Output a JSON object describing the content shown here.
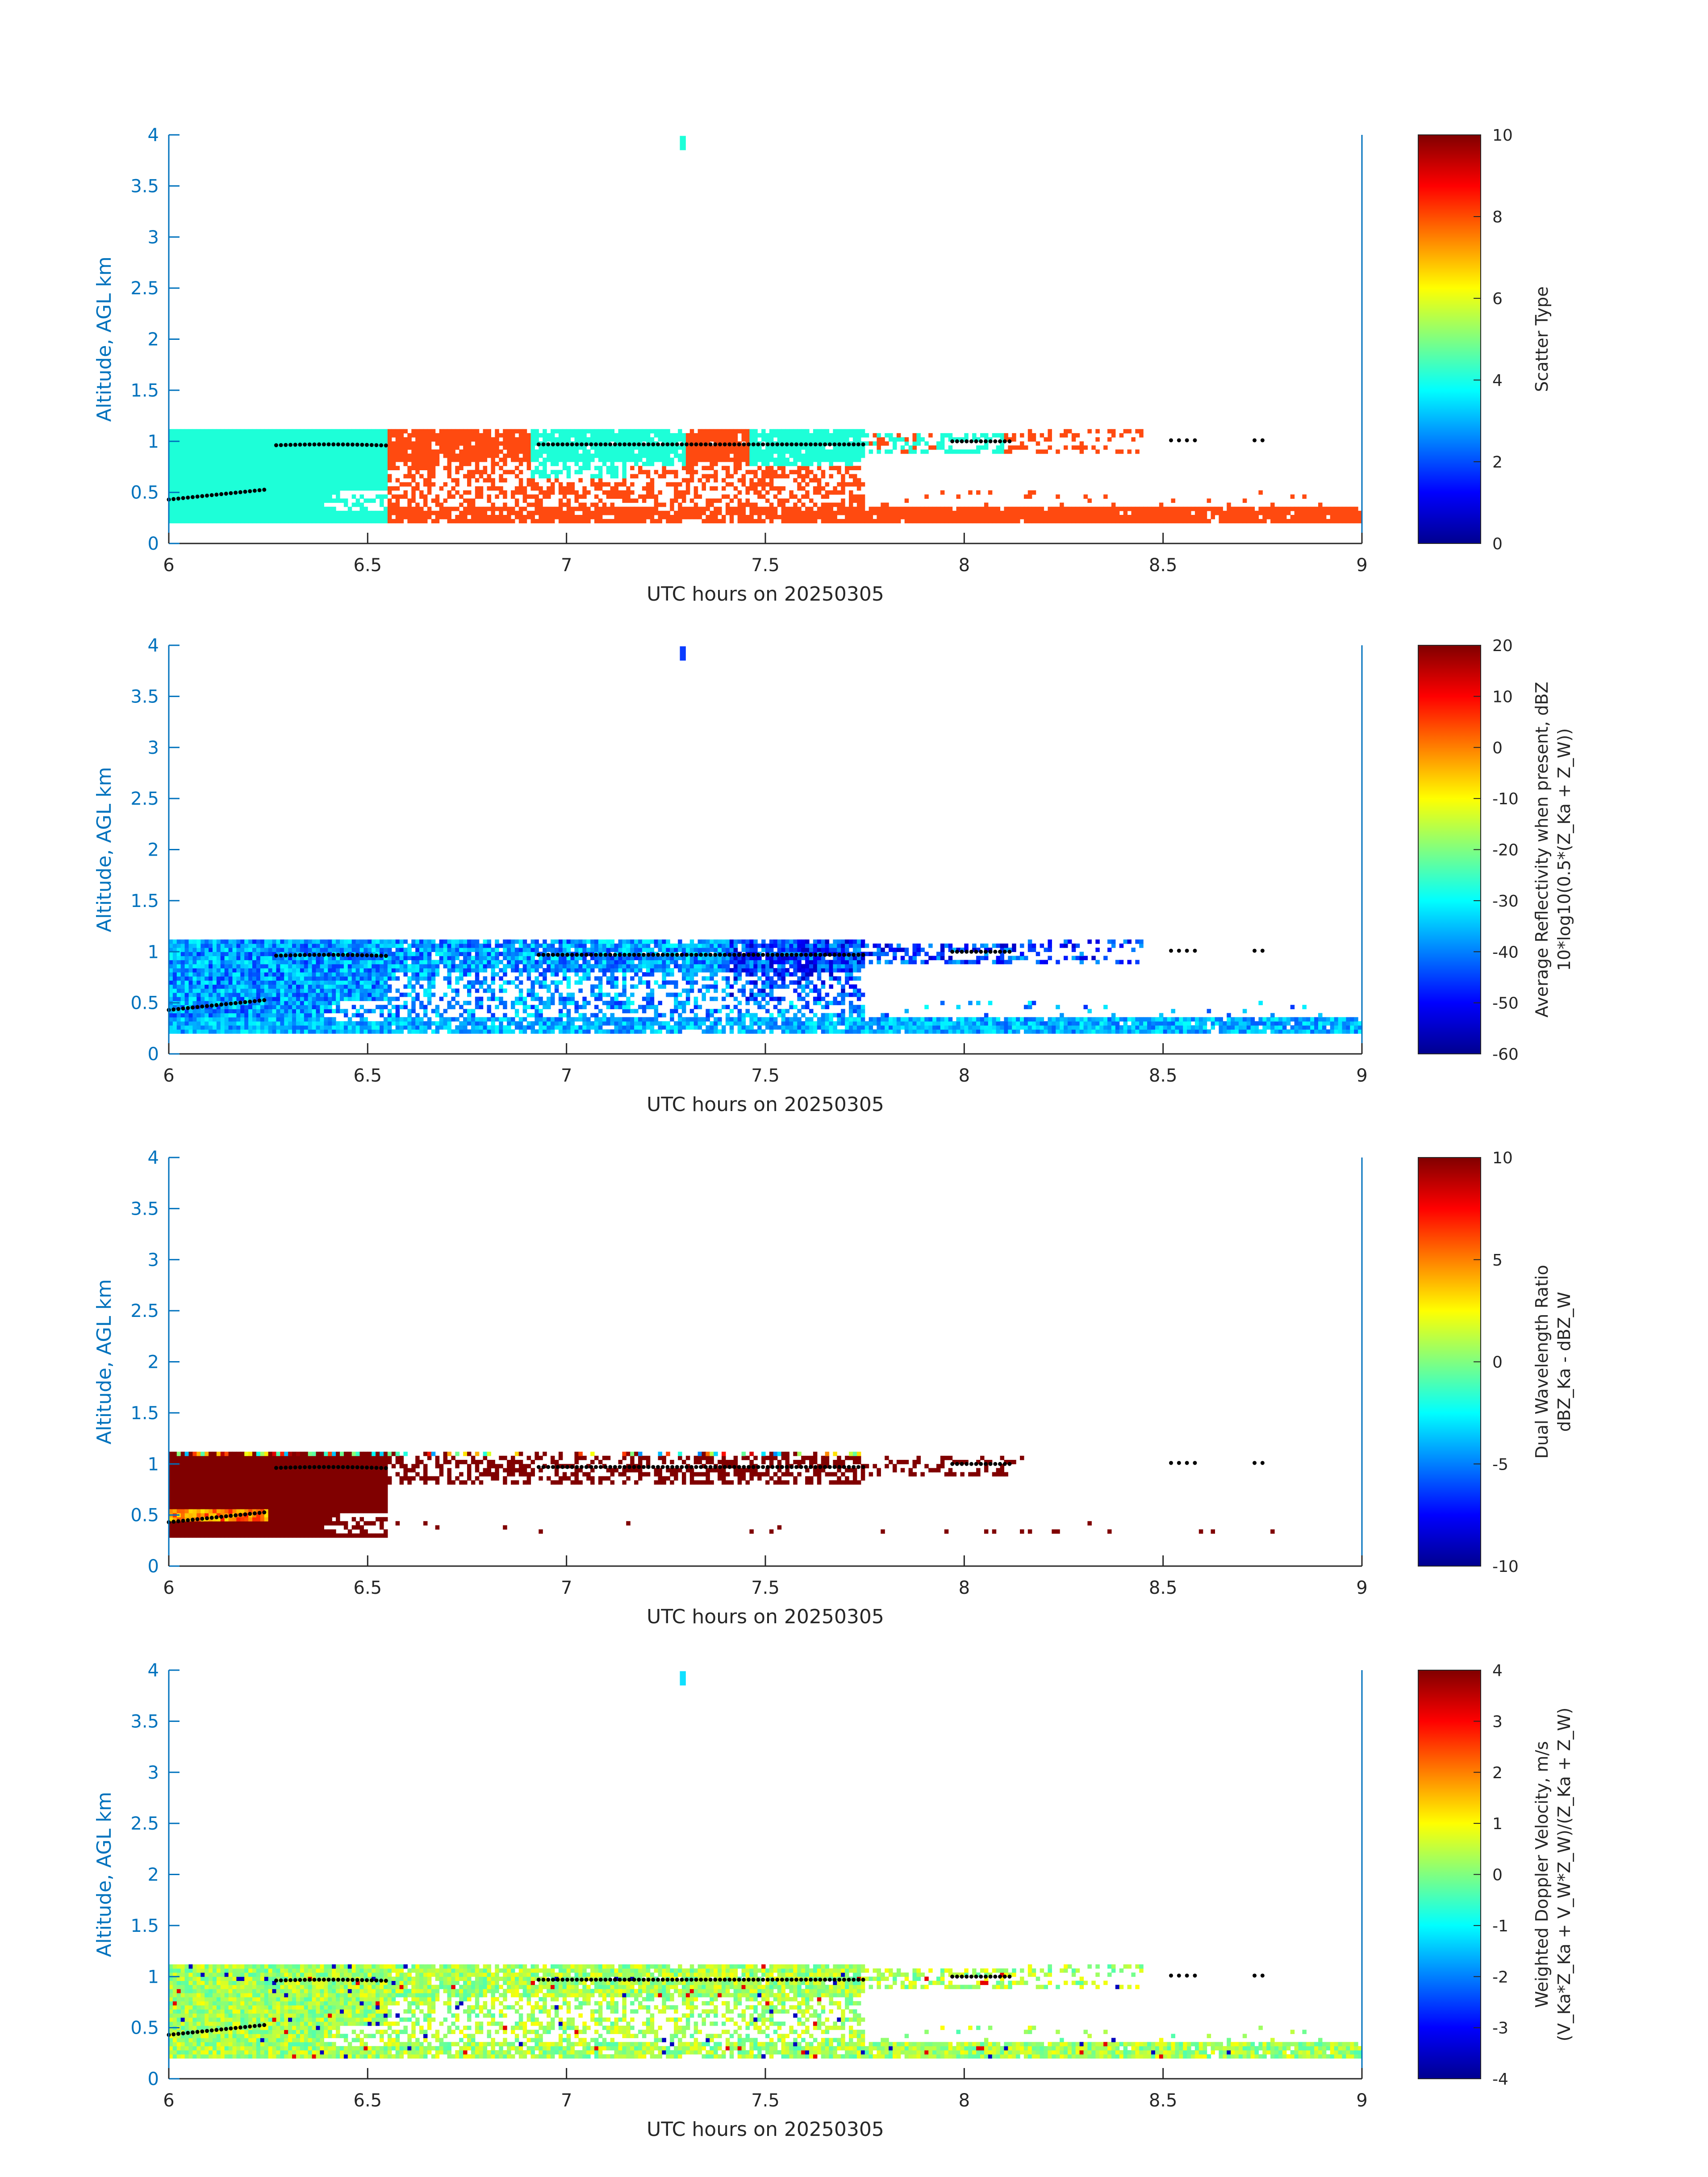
{
  "chart_data": [
    {
      "type": "heatmap",
      "panel": "scatter-type",
      "xlabel": "UTC hours on 20250305",
      "ylabel": "Altitude, AGL km",
      "xlim": [
        6,
        9
      ],
      "ylim": [
        0,
        4
      ],
      "xticks": [
        "6",
        "6.5",
        "7",
        "7.5",
        "8",
        "8.5",
        "9"
      ],
      "yticks": [
        "0",
        "0.5",
        "1",
        "1.5",
        "2",
        "2.5",
        "3",
        "3.5",
        "4"
      ],
      "colorbar": {
        "label": "Scatter Type",
        "label2": "",
        "range": [
          0,
          10
        ],
        "ticks": [
          "0",
          "2",
          "4",
          "6",
          "8",
          "10"
        ]
      }
    },
    {
      "type": "heatmap",
      "panel": "reflectivity",
      "xlabel": "UTC hours on 20250305",
      "ylabel": "Altitude, AGL km",
      "xlim": [
        6,
        9
      ],
      "ylim": [
        0,
        4
      ],
      "xticks": [
        "6",
        "6.5",
        "7",
        "7.5",
        "8",
        "8.5",
        "9"
      ],
      "yticks": [
        "0",
        "0.5",
        "1",
        "1.5",
        "2",
        "2.5",
        "3",
        "3.5",
        "4"
      ],
      "colorbar": {
        "label": "Average Reflectivity when present, dBZ",
        "label2": "10*log10(0.5*(Z_Ka + Z_W))",
        "range": [
          -60,
          20
        ],
        "ticks": [
          "-60",
          "-50",
          "-40",
          "-30",
          "-20",
          "-10",
          "0",
          "10",
          "20"
        ]
      }
    },
    {
      "type": "heatmap",
      "panel": "dual-wavelength-ratio",
      "xlabel": "UTC hours on 20250305",
      "ylabel": "Altitude, AGL km",
      "xlim": [
        6,
        9
      ],
      "ylim": [
        0,
        4
      ],
      "xticks": [
        "6",
        "6.5",
        "7",
        "7.5",
        "8",
        "8.5",
        "9"
      ],
      "yticks": [
        "0",
        "0.5",
        "1",
        "1.5",
        "2",
        "2.5",
        "3",
        "3.5",
        "4"
      ],
      "colorbar": {
        "label": "Dual Wavelength Ratio",
        "label2": "dBZ_Ka - dBZ_W",
        "range": [
          -10,
          10
        ],
        "ticks": [
          "-10",
          "-5",
          "0",
          "5",
          "10"
        ]
      }
    },
    {
      "type": "heatmap",
      "panel": "doppler-velocity",
      "xlabel": "UTC hours on 20250305",
      "ylabel": "Altitude, AGL km",
      "xlim": [
        6,
        9
      ],
      "ylim": [
        0,
        4
      ],
      "xticks": [
        "6",
        "6.5",
        "7",
        "7.5",
        "8",
        "8.5",
        "9"
      ],
      "yticks": [
        "0",
        "0.5",
        "1",
        "1.5",
        "2",
        "2.5",
        "3",
        "3.5",
        "4"
      ],
      "colorbar": {
        "label": "Weighted Doppler Velocity, m/s",
        "label2": "(V_Ka*Z_Ka + V_W*Z_W)/(Z_Ka + Z_W)",
        "range": [
          -4,
          4
        ],
        "ticks": [
          "-4",
          "-3",
          "-2",
          "-1",
          "0",
          "1",
          "2",
          "3",
          "4"
        ]
      }
    }
  ],
  "colors": {
    "axis_blue": "#0072BD",
    "text": "#262626",
    "cloud_type": "#1DFFD8",
    "precip_type": "#FF4A10",
    "dwr_dark": "#800000"
  }
}
